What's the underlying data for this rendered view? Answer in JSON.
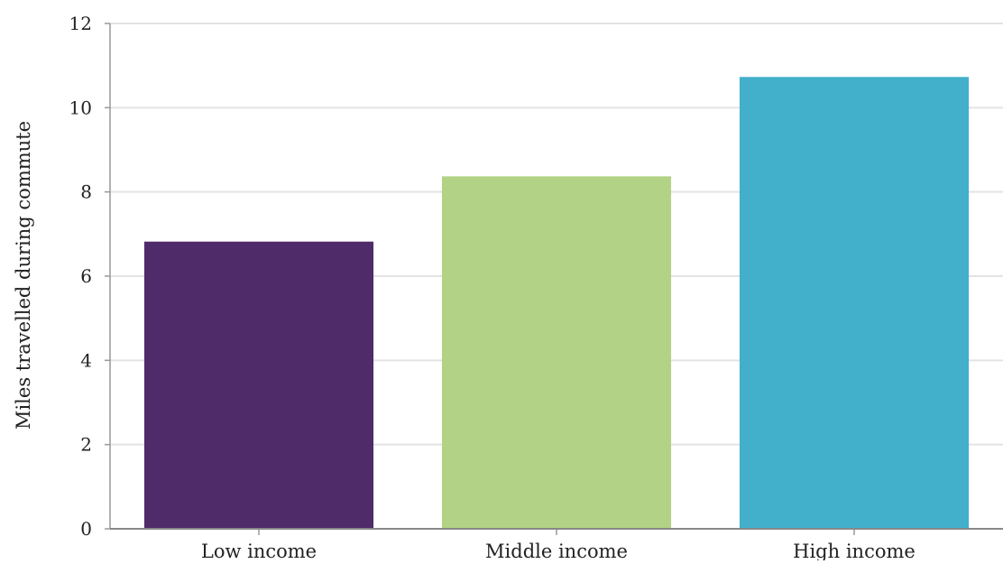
{
  "chart_data": {
    "type": "bar",
    "categories": [
      "Low income",
      "Middle income",
      "High income"
    ],
    "values": [
      6.82,
      8.37,
      10.73
    ],
    "colors": [
      "#502b69",
      "#b2d385",
      "#42b0cb"
    ],
    "title": "",
    "xlabel": "",
    "ylabel": "Miles travelled during commute",
    "ylim": [
      0,
      12
    ],
    "yticks": [
      0,
      2,
      4,
      6,
      8,
      10,
      12
    ],
    "grid": true
  }
}
